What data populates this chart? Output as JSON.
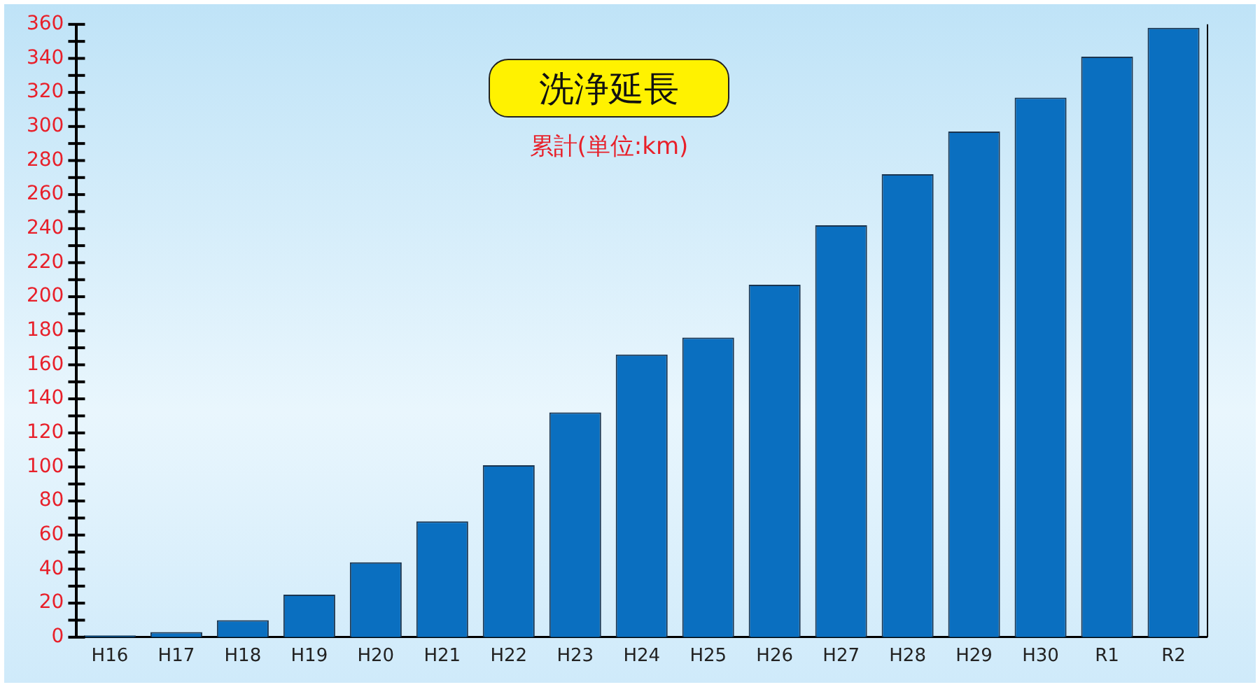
{
  "chart_data": {
    "type": "bar",
    "title": "洗浄延長",
    "subtitle": "累計(単位:km)",
    "categories": [
      "H16",
      "H17",
      "H18",
      "H19",
      "H20",
      "H21",
      "H22",
      "H23",
      "H24",
      "H25",
      "H26",
      "H27",
      "H28",
      "H29",
      "H30",
      "R1",
      "R2"
    ],
    "values": [
      1,
      3,
      10,
      25,
      44,
      68,
      101,
      132,
      166,
      176,
      207,
      242,
      272,
      297,
      317,
      341,
      358
    ],
    "color": "#0a6fc0",
    "ylim": [
      0,
      360
    ],
    "yticks": [
      0,
      {
        "value": 10,
        "label": null
      },
      20,
      {
        "value": 30,
        "label": null
      },
      40,
      {
        "value": 50,
        "label": null
      },
      60,
      {
        "value": 70,
        "label": null
      },
      80,
      {
        "value": 90,
        "label": null
      },
      100,
      {
        "value": 110,
        "label": null
      },
      120,
      {
        "value": 130,
        "label": null
      },
      140,
      {
        "value": 150,
        "label": null
      },
      160,
      {
        "value": 170,
        "label": null
      },
      180,
      {
        "value": 190,
        "label": null
      },
      200,
      {
        "value": 210,
        "label": null
      },
      220,
      {
        "value": 230,
        "label": null
      },
      240,
      {
        "value": 250,
        "label": null
      },
      260,
      {
        "value": 270,
        "label": null
      },
      280,
      {
        "value": 290,
        "label": null
      },
      300,
      {
        "value": 310,
        "label": null
      },
      320,
      {
        "value": 330,
        "label": null
      },
      340,
      {
        "value": 350,
        "label": null
      },
      360
    ],
    "grid": false,
    "legend": false
  }
}
